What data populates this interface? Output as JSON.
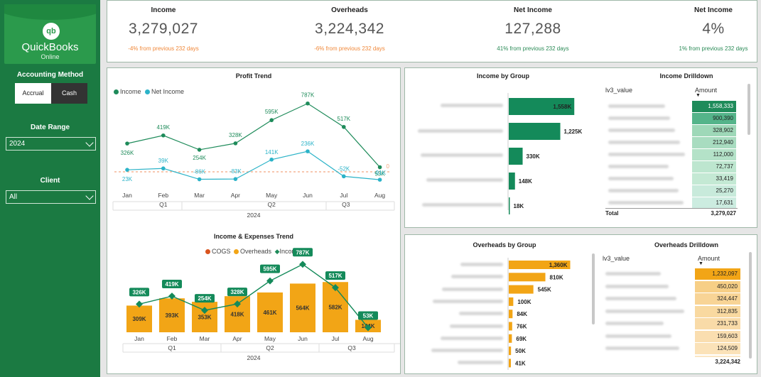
{
  "logo": {
    "mark": "qb",
    "name": "QuickBooks",
    "sub": "Online"
  },
  "filters": {
    "method_label": "Accounting Method",
    "method_options": [
      "Accrual",
      "Cash"
    ],
    "method_selected": "Accrual",
    "date_label": "Date Range",
    "date_value": "2024",
    "client_label": "Client",
    "client_value": "All"
  },
  "kpis": [
    {
      "title": "Income",
      "value": "3,279,027",
      "delta": "-4% from previous 232 days",
      "color": "#f0883a"
    },
    {
      "title": "Overheads",
      "value": "3,224,342",
      "delta": "-6% from previous 232 days",
      "color": "#f0883a"
    },
    {
      "title": "Net Income",
      "value": "127,288",
      "delta": "41% from previous 232 days",
      "color": "#2a8a56"
    },
    {
      "title": "Net Income",
      "value": "4%",
      "delta": "1% from previous 232 days",
      "color": "#2a8a56"
    }
  ],
  "colors": {
    "income": "#1e8b5a",
    "net_income": "#2bb3c8",
    "cogs": "#d9541e",
    "overheads": "#f2a516",
    "income_bar": "#148a5a",
    "overheads_bar": "#f2a516",
    "zero_line": "#f4a880"
  },
  "profit_trend": {
    "title": "Profit Trend",
    "legend": [
      "Income",
      "Net Income"
    ],
    "year_label": "2024",
    "quarters": [
      "Q1",
      "Q2",
      "Q3"
    ],
    "zero_label": "0",
    "chart_data": {
      "type": "line",
      "categories": [
        "Jan",
        "Feb",
        "Mar",
        "Apr",
        "May",
        "Jun",
        "Jul",
        "Aug"
      ],
      "series": [
        {
          "name": "Income",
          "values": [
            326,
            419,
            254,
            328,
            595,
            787,
            517,
            53
          ],
          "labels": [
            "326K",
            "419K",
            "254K",
            "328K",
            "595K",
            "787K",
            "517K",
            "53K"
          ]
        },
        {
          "name": "Net Income",
          "values": [
            23,
            39,
            -86,
            -83,
            141,
            236,
            -52,
            -91
          ],
          "labels": [
            "23K",
            "39K",
            "-86K",
            "-83K",
            "141K",
            "236K",
            "-52K",
            "-91K"
          ]
        }
      ]
    }
  },
  "ie_trend": {
    "title": "Income & Expenses Trend",
    "legend": [
      "COGS",
      "Overheads",
      "Income"
    ],
    "year_label": "2024",
    "quarters": [
      "Q1",
      "Q2",
      "Q3"
    ],
    "chart_data": {
      "type": "bar",
      "categories": [
        "Jan",
        "Feb",
        "Mar",
        "Apr",
        "May",
        "Jun",
        "Jul",
        "Aug"
      ],
      "series": [
        {
          "name": "Overheads",
          "values": [
            309,
            393,
            353,
            418,
            461,
            564,
            582,
            144
          ],
          "labels": [
            "309K",
            "393K",
            "353K",
            "418K",
            "461K",
            "564K",
            "582K",
            "144K"
          ]
        },
        {
          "name": "Income",
          "values": [
            326,
            419,
            254,
            328,
            595,
            787,
            517,
            53
          ],
          "labels": [
            "326K",
            "419K",
            "254K",
            "328K",
            "595K",
            "787K",
            "517K",
            "53K"
          ]
        }
      ]
    }
  },
  "income_group": {
    "title": "Income by Group",
    "chart_data": {
      "type": "bar",
      "values": [
        1558,
        1225,
        330,
        148,
        18
      ],
      "labels": [
        "1,558K",
        "1,225K",
        "330K",
        "148K",
        "18K"
      ]
    }
  },
  "income_drill": {
    "title": "Income Drilldown",
    "col1": "lv3_value",
    "col2": "Amount",
    "amounts": [
      "1,558,333",
      "900,390",
      "328,902",
      "212,940",
      "112,000",
      "72,737",
      "33,419",
      "25,270",
      "17,631"
    ],
    "total_label": "Total",
    "total": "3,279,027"
  },
  "overheads_group": {
    "title": "Overheads by Group",
    "chart_data": {
      "type": "bar",
      "values": [
        1360,
        810,
        545,
        100,
        84,
        76,
        69,
        50,
        41
      ],
      "labels": [
        "1,360K",
        "810K",
        "545K",
        "100K",
        "84K",
        "76K",
        "69K",
        "50K",
        "41K"
      ]
    }
  },
  "overheads_drill": {
    "title": "Overheads Drilldown",
    "col1": "lv3_value",
    "col2": "Amount",
    "amounts": [
      "1,232,097",
      "450,020",
      "324,447",
      "312,835",
      "231,733",
      "159,603",
      "124,509"
    ],
    "total": "3,224,342"
  }
}
